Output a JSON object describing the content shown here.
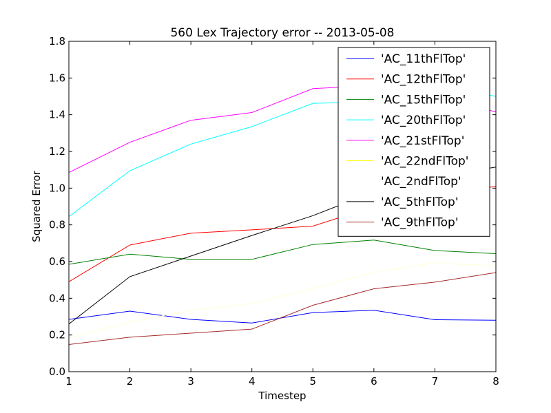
{
  "chart_data": {
    "type": "line",
    "title": "560 Lex Trajectory error -- 2013-05-08",
    "xlabel": "Timestep",
    "ylabel": "Squared Error",
    "xlim": [
      1,
      8
    ],
    "ylim": [
      0.0,
      1.8
    ],
    "xticks": [
      "1",
      "2",
      "3",
      "4",
      "5",
      "6",
      "7",
      "8"
    ],
    "yticks": [
      "0.0",
      "0.2",
      "0.4",
      "0.6",
      "0.8",
      "1.0",
      "1.2",
      "1.4",
      "1.6",
      "1.8"
    ],
    "grid": false,
    "legend_position": "top-right",
    "x": [
      1,
      2,
      3,
      4,
      5,
      6,
      7,
      8
    ],
    "series": [
      {
        "name": "'AC_11thFlTop'",
        "color": "#0000ff",
        "values": [
          0.285,
          0.33,
          0.285,
          0.265,
          0.322,
          0.335,
          0.283,
          0.28
        ]
      },
      {
        "name": "'AC_12thFlTop'",
        "color": "#ff0000",
        "values": [
          0.49,
          0.69,
          0.755,
          0.773,
          0.793,
          0.9,
          0.96,
          1.01
        ]
      },
      {
        "name": "'AC_15thFlTop'",
        "color": "#008000",
        "values": [
          0.585,
          0.64,
          0.612,
          0.612,
          0.693,
          0.717,
          0.66,
          0.643
        ]
      },
      {
        "name": "'AC_20thFlTop'",
        "color": "#00ffff",
        "values": [
          0.845,
          1.095,
          1.24,
          1.335,
          1.462,
          1.47,
          1.56,
          1.5
        ]
      },
      {
        "name": "'AC_21stFlTop'",
        "color": "#ff00ff",
        "values": [
          1.085,
          1.25,
          1.37,
          1.412,
          1.542,
          1.56,
          1.5,
          1.415
        ]
      },
      {
        "name": "'AC_22ndFlTop'",
        "color": "#ffff00",
        "values": [
          0.183,
          0.27,
          0.335,
          0.37,
          0.452,
          0.54,
          0.593,
          0.575
        ]
      },
      {
        "name": "'AC_2ndFlTop'",
        "color": "#ffffff",
        "values": [
          0.183,
          0.27,
          0.335,
          0.37,
          0.452,
          0.54,
          0.593,
          0.575
        ]
      },
      {
        "name": "'AC_5thFlTop'",
        "color": "#000000",
        "values": [
          0.26,
          0.518,
          0.63,
          0.742,
          0.85,
          0.98,
          1.06,
          1.115
        ]
      },
      {
        "name": "'AC_9thFlTop'",
        "color": "#a52a2a",
        "values": [
          0.148,
          0.188,
          0.21,
          0.232,
          0.362,
          0.452,
          0.488,
          0.54
        ]
      }
    ]
  }
}
